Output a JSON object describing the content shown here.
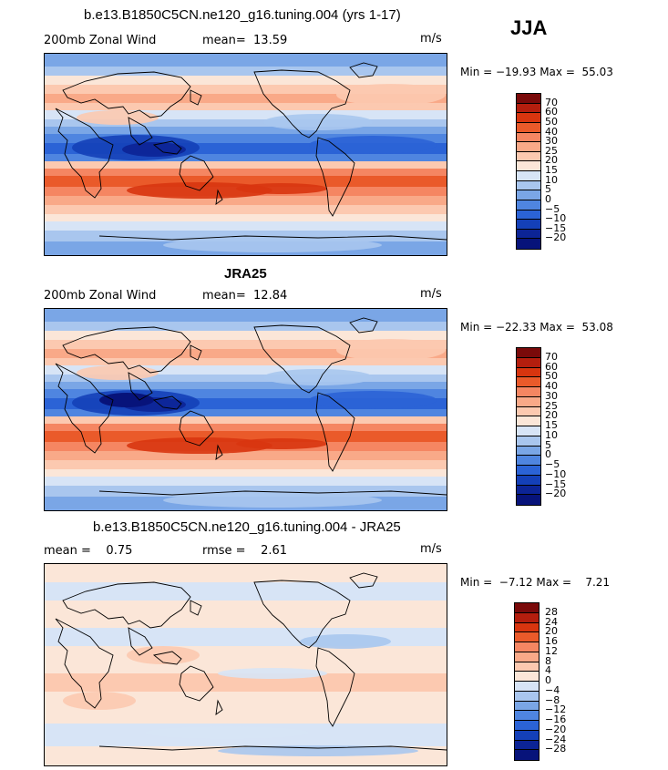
{
  "season": "JJA",
  "panels": [
    {
      "title": "b.e13.B1850C5CN.ne120_g16.tuning.004 (yrs 1-17)",
      "left_label": "200mb Zonal Wind",
      "mid_label": "mean=  13.59",
      "units": "m/s",
      "minmax": "Min = −19.93 Max =  55.03",
      "colorbar_labels": [
        "70",
        "60",
        "50",
        "40",
        "30",
        "25",
        "20",
        "15",
        "10",
        "5",
        "0",
        "−5",
        "−10",
        "−15",
        "−20"
      ],
      "colorbar_colors": [
        "#7a0a0a",
        "#b41e0e",
        "#d8350f",
        "#ea5a2a",
        "#f58662",
        "#f9a988",
        "#fcc9b0",
        "#fbe6d8",
        "#d7e4f6",
        "#a9c6ee",
        "#7aa6e6",
        "#4f85e0",
        "#2b63d6",
        "#1440b8",
        "#0c2496",
        "#07137a"
      ],
      "field": "mean"
    },
    {
      "title": "JRA25",
      "left_label": "200mb Zonal Wind",
      "mid_label": "mean=  12.84",
      "units": "m/s",
      "minmax": "Min = −22.33 Max =  53.08",
      "colorbar_labels": [
        "70",
        "60",
        "50",
        "40",
        "30",
        "25",
        "20",
        "15",
        "10",
        "5",
        "0",
        "−5",
        "−10",
        "−15",
        "−20"
      ],
      "colorbar_colors": [
        "#7a0a0a",
        "#b41e0e",
        "#d8350f",
        "#ea5a2a",
        "#f58662",
        "#f9a988",
        "#fcc9b0",
        "#fbe6d8",
        "#d7e4f6",
        "#a9c6ee",
        "#7aa6e6",
        "#4f85e0",
        "#2b63d6",
        "#1440b8",
        "#0c2496",
        "#07137a"
      ],
      "field": "mean"
    },
    {
      "title": "b.e13.B1850C5CN.ne120_g16.tuning.004 - JRA25",
      "left_label": "mean =    0.75",
      "mid_label": "rmse =    2.61",
      "units": "m/s",
      "minmax": "Min =  −7.12 Max =    7.21",
      "colorbar_labels": [
        "28",
        "24",
        "20",
        "16",
        "12",
        "8",
        "4",
        "0",
        "−4",
        "−8",
        "−12",
        "−16",
        "−20",
        "−24",
        "−28"
      ],
      "colorbar_colors": [
        "#7a0a0a",
        "#b41e0e",
        "#d8350f",
        "#ea5a2a",
        "#f58662",
        "#f9a988",
        "#fcc9b0",
        "#fbe6d8",
        "#d7e4f6",
        "#a9c6ee",
        "#7aa6e6",
        "#4f85e0",
        "#2b63d6",
        "#1440b8",
        "#0c2496",
        "#07137a"
      ],
      "field": "diff"
    }
  ]
}
